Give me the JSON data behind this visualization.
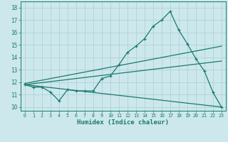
{
  "title": "",
  "xlabel": "Humidex (Indice chaleur)",
  "xlim": [
    -0.5,
    23.5
  ],
  "ylim": [
    9.7,
    18.5
  ],
  "xticks": [
    0,
    1,
    2,
    3,
    4,
    5,
    6,
    7,
    8,
    9,
    10,
    11,
    12,
    13,
    14,
    15,
    16,
    17,
    18,
    19,
    20,
    21,
    22,
    23
  ],
  "yticks": [
    10,
    11,
    12,
    13,
    14,
    15,
    16,
    17,
    18
  ],
  "bg_color": "#cce8ec",
  "line_color": "#1a7a6e",
  "grid_color": "#aacdd4",
  "line1_x": [
    0,
    1,
    2,
    3,
    4,
    5,
    6,
    7,
    8,
    9,
    10,
    11,
    12,
    13,
    14,
    15,
    16,
    17,
    18,
    19,
    20,
    21,
    22,
    23
  ],
  "line1_y": [
    11.8,
    11.6,
    11.6,
    11.2,
    10.5,
    11.4,
    11.3,
    11.3,
    11.3,
    12.3,
    12.5,
    13.4,
    14.4,
    14.9,
    15.5,
    16.5,
    17.0,
    17.7,
    16.2,
    15.1,
    13.9,
    12.9,
    11.2,
    10.0
  ],
  "line2_x": [
    0,
    23
  ],
  "line2_y": [
    11.9,
    14.9
  ],
  "line3_x": [
    0,
    23
  ],
  "line3_y": [
    11.8,
    13.7
  ],
  "line4_x": [
    0,
    23
  ],
  "line4_y": [
    11.8,
    10.0
  ]
}
